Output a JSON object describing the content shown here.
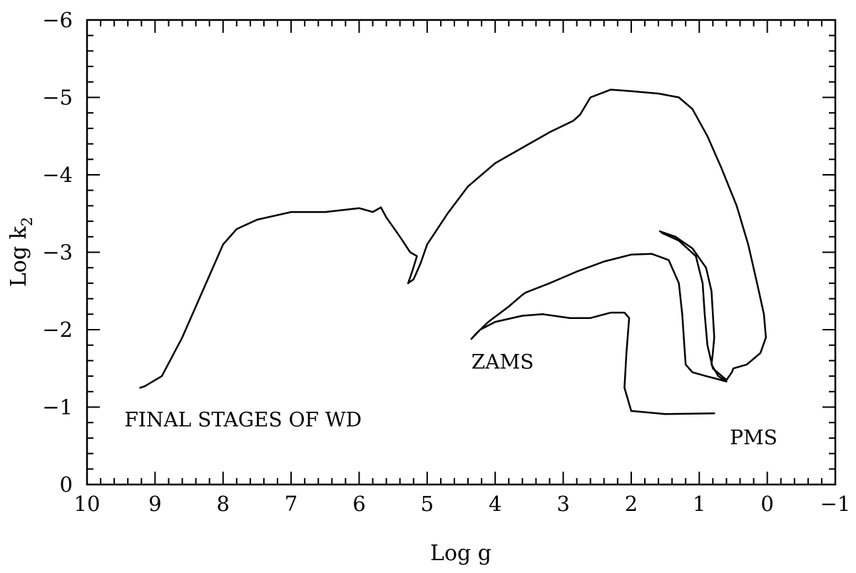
{
  "chart_data": {
    "type": "line",
    "xlabel": "Log g",
    "ylabel_main": "Log k",
    "ylabel_sub": "2",
    "xlim": [
      10,
      -1
    ],
    "ylim": [
      0,
      -6
    ],
    "x_ticks": [
      {
        "value": 10,
        "label": "10"
      },
      {
        "value": 9,
        "label": "9"
      },
      {
        "value": 8,
        "label": "8"
      },
      {
        "value": 7,
        "label": "7"
      },
      {
        "value": 6,
        "label": "6"
      },
      {
        "value": 5,
        "label": "5"
      },
      {
        "value": 4,
        "label": "4"
      },
      {
        "value": 3,
        "label": "3"
      },
      {
        "value": 2,
        "label": "2"
      },
      {
        "value": 1,
        "label": "1"
      },
      {
        "value": 0,
        "label": "0"
      },
      {
        "value": -1,
        "label": "−1"
      }
    ],
    "y_ticks": [
      {
        "value": 0,
        "label": "0"
      },
      {
        "value": -1,
        "label": "−1"
      },
      {
        "value": -2,
        "label": "−2"
      },
      {
        "value": -3,
        "label": "−3"
      },
      {
        "value": -4,
        "label": "−4"
      },
      {
        "value": -5,
        "label": "−5"
      },
      {
        "value": -6,
        "label": "−6"
      }
    ],
    "grid": false,
    "series": [
      {
        "points": [
          [
            0.78,
            -0.92
          ],
          [
            1.5,
            -0.91
          ],
          [
            2.0,
            -0.95
          ],
          [
            2.1,
            -1.25
          ],
          [
            2.07,
            -1.7
          ],
          [
            2.03,
            -2.15
          ],
          [
            2.1,
            -2.22
          ],
          [
            2.3,
            -2.22
          ],
          [
            2.6,
            -2.15
          ],
          [
            2.9,
            -2.15
          ],
          [
            3.3,
            -2.2
          ],
          [
            3.6,
            -2.18
          ],
          [
            4.0,
            -2.1
          ],
          [
            4.22,
            -2.0
          ],
          [
            4.35,
            -1.88
          ],
          [
            4.28,
            -1.95
          ],
          [
            4.1,
            -2.1
          ],
          [
            3.8,
            -2.3
          ],
          [
            3.6,
            -2.45
          ],
          [
            3.55,
            -2.48
          ],
          [
            3.2,
            -2.6
          ],
          [
            2.8,
            -2.75
          ],
          [
            2.4,
            -2.88
          ],
          [
            2.0,
            -2.97
          ],
          [
            1.7,
            -2.98
          ],
          [
            1.45,
            -2.9
          ],
          [
            1.3,
            -2.6
          ],
          [
            1.25,
            -2.2
          ],
          [
            1.22,
            -1.8
          ],
          [
            1.2,
            -1.55
          ],
          [
            1.1,
            -1.45
          ],
          [
            0.9,
            -1.4
          ],
          [
            0.68,
            -1.35
          ],
          [
            0.6,
            -1.33
          ],
          [
            0.72,
            -1.4
          ],
          [
            0.82,
            -1.55
          ],
          [
            0.8,
            -1.7
          ],
          [
            0.78,
            -1.9
          ],
          [
            0.82,
            -2.5
          ],
          [
            0.9,
            -2.8
          ],
          [
            1.1,
            -3.05
          ],
          [
            1.35,
            -3.2
          ],
          [
            1.58,
            -3.27
          ]
        ]
      },
      {
        "points": [
          [
            1.55,
            -3.25
          ],
          [
            1.3,
            -3.15
          ],
          [
            1.05,
            -2.95
          ],
          [
            0.95,
            -2.6
          ],
          [
            0.92,
            -2.2
          ],
          [
            0.88,
            -1.8
          ],
          [
            0.8,
            -1.5
          ],
          [
            0.6,
            -1.35
          ],
          [
            0.52,
            -1.45
          ],
          [
            0.5,
            -1.5
          ],
          [
            0.3,
            -1.55
          ],
          [
            0.1,
            -1.7
          ],
          [
            0.02,
            -1.9
          ],
          [
            0.05,
            -2.2
          ],
          [
            0.15,
            -2.6
          ],
          [
            0.28,
            -3.1
          ],
          [
            0.45,
            -3.6
          ],
          [
            0.68,
            -4.1
          ],
          [
            0.88,
            -4.5
          ],
          [
            1.1,
            -4.85
          ],
          [
            1.3,
            -5.0
          ],
          [
            1.6,
            -5.05
          ],
          [
            2.0,
            -5.08
          ],
          [
            2.3,
            -5.1
          ],
          [
            2.6,
            -5.0
          ],
          [
            2.75,
            -4.78
          ],
          [
            2.85,
            -4.7
          ],
          [
            3.2,
            -4.55
          ],
          [
            3.6,
            -4.35
          ],
          [
            4.0,
            -4.15
          ],
          [
            4.4,
            -3.85
          ],
          [
            4.7,
            -3.5
          ],
          [
            5.0,
            -3.1
          ],
          [
            5.1,
            -2.85
          ],
          [
            5.2,
            -2.65
          ],
          [
            5.28,
            -2.6
          ],
          [
            5.22,
            -2.75
          ],
          [
            5.15,
            -2.95
          ],
          [
            5.25,
            -3.0
          ],
          [
            5.4,
            -3.2
          ],
          [
            5.6,
            -3.45
          ],
          [
            5.68,
            -3.58
          ],
          [
            5.8,
            -3.52
          ],
          [
            6.0,
            -3.57
          ],
          [
            6.5,
            -3.52
          ],
          [
            7.0,
            -3.52
          ],
          [
            7.5,
            -3.42
          ],
          [
            7.8,
            -3.3
          ],
          [
            8.0,
            -3.1
          ],
          [
            8.3,
            -2.5
          ],
          [
            8.6,
            -1.9
          ],
          [
            8.9,
            -1.4
          ],
          [
            9.15,
            -1.27
          ],
          [
            9.22,
            -1.25
          ]
        ]
      }
    ],
    "annotations": [
      {
        "text": "ZAMS",
        "x": 4.35,
        "y": -1.5
      },
      {
        "text": "FINAL STAGES OF WD",
        "x": 9.45,
        "y": -0.75
      },
      {
        "text": "PMS",
        "x": 0.55,
        "y": -0.52
      }
    ]
  }
}
